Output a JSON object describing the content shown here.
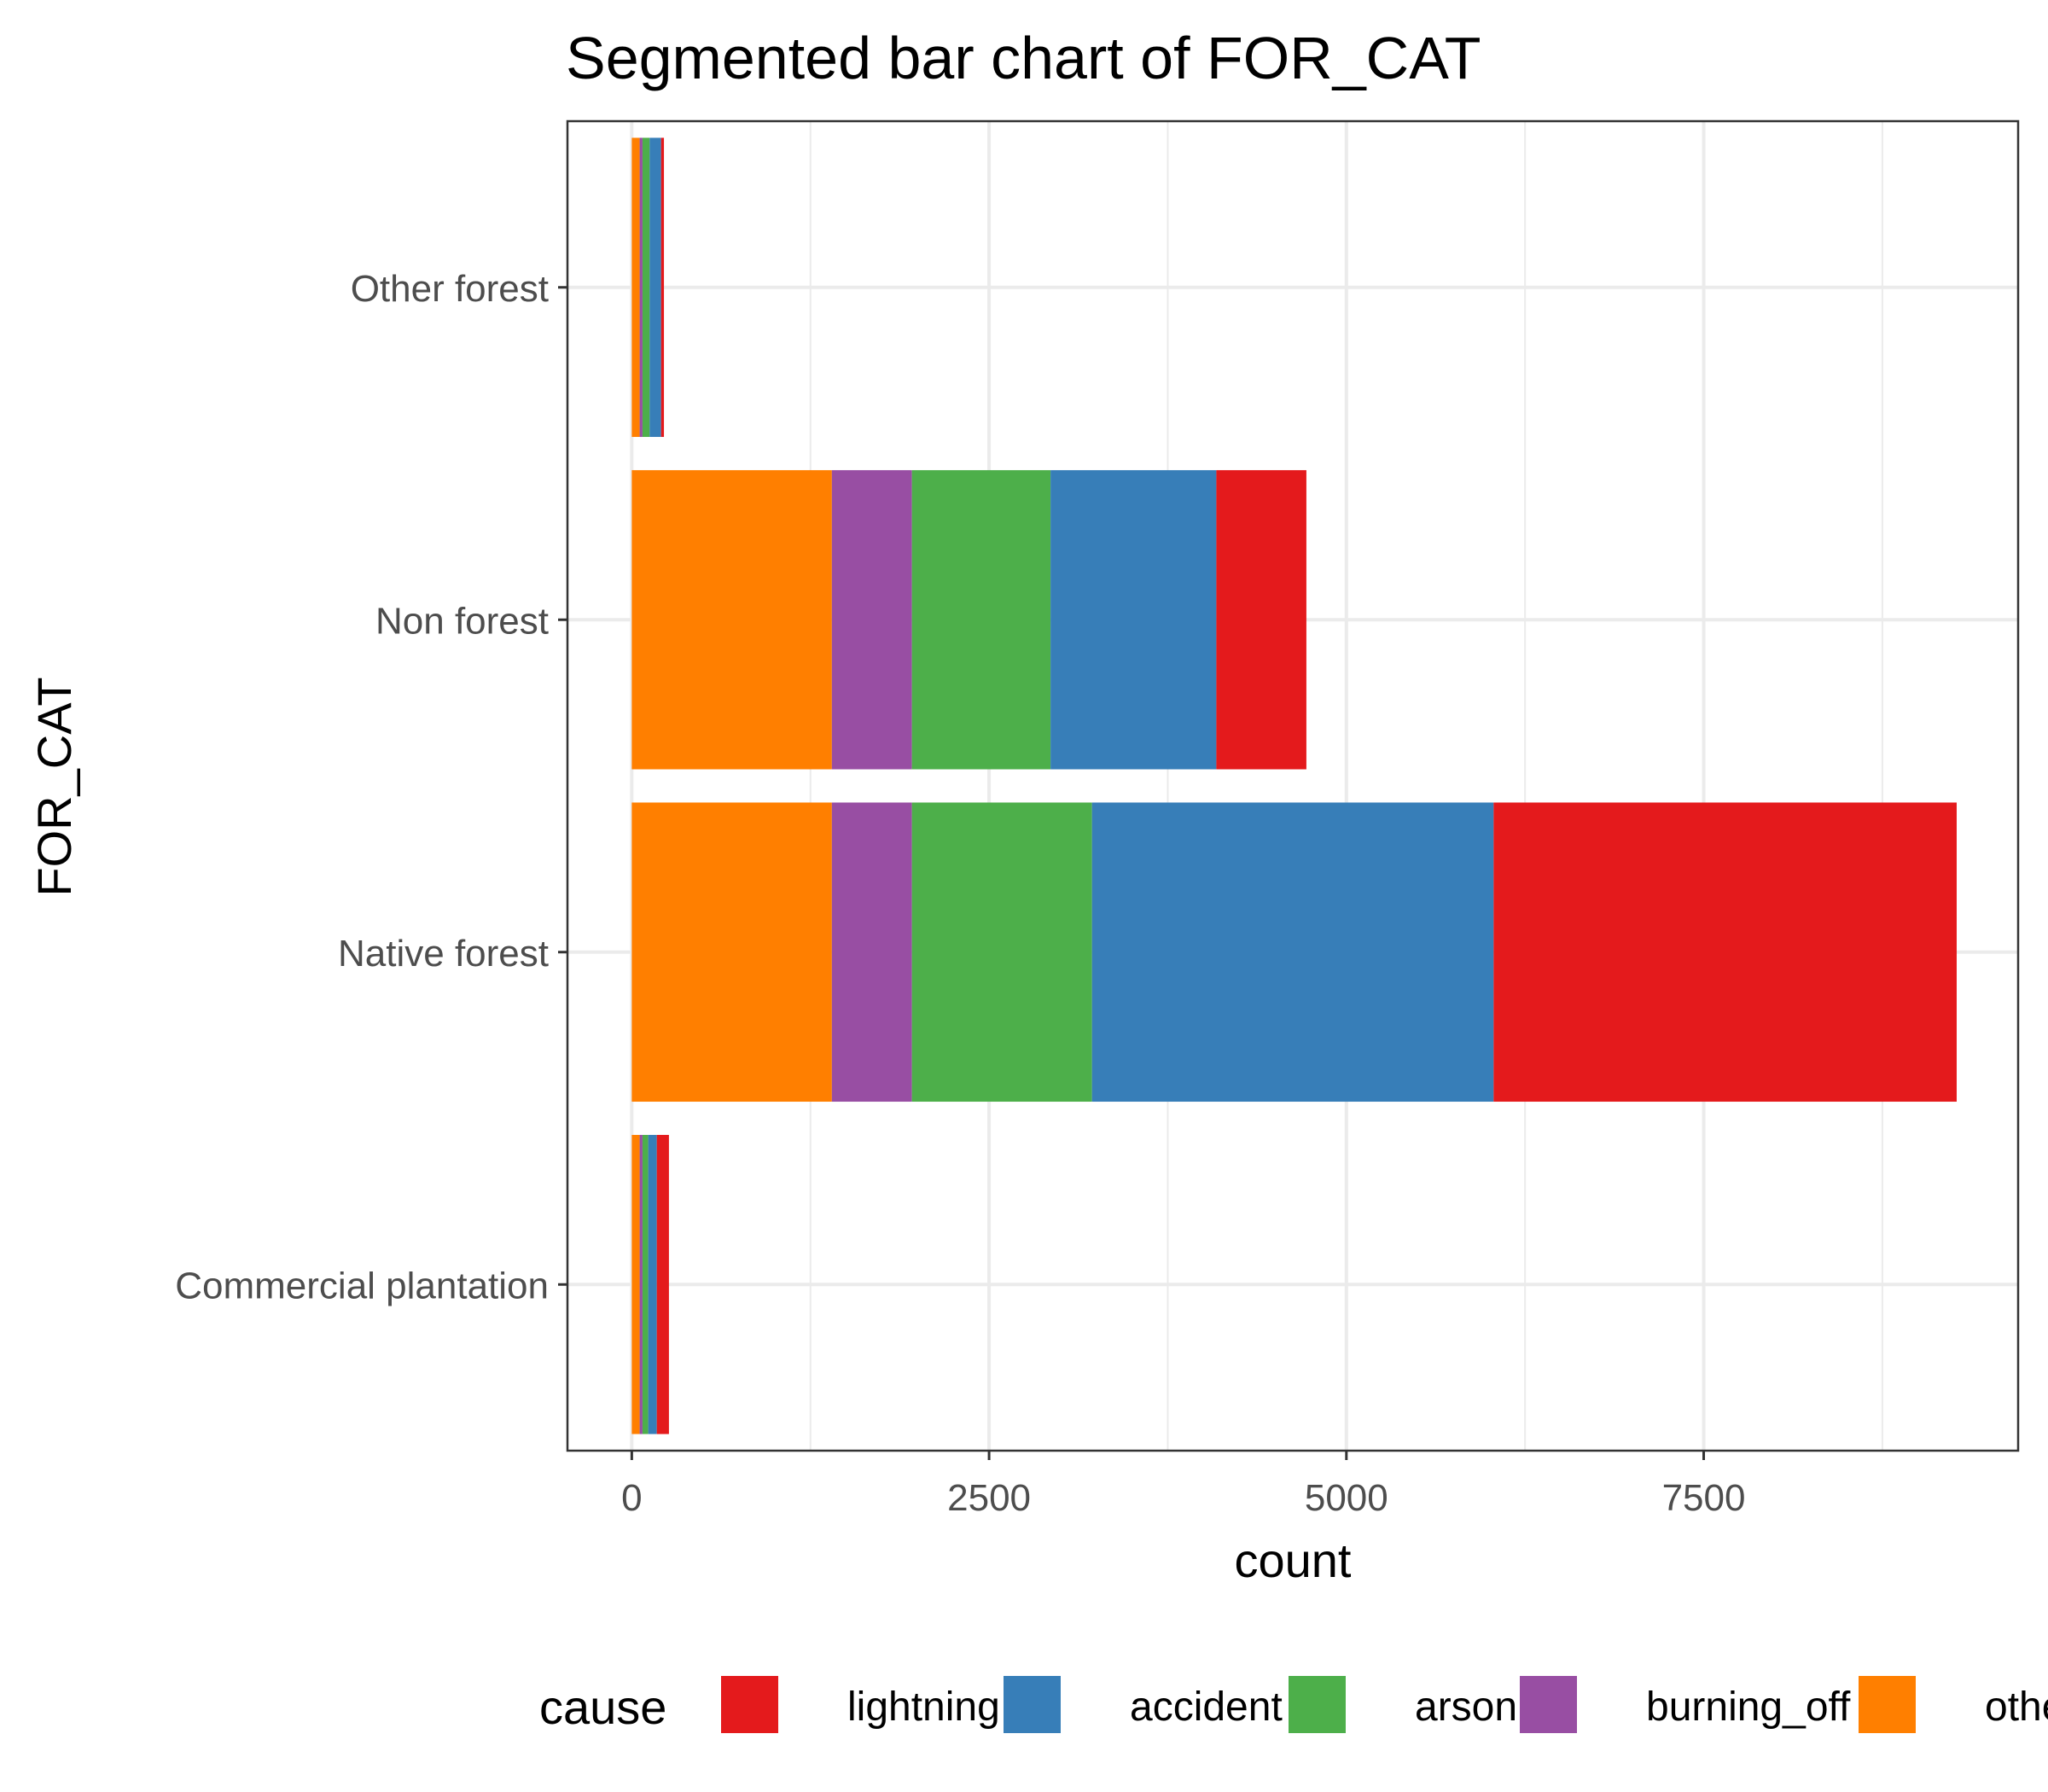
{
  "chart_data": {
    "type": "bar",
    "orientation": "horizontal",
    "stacked": true,
    "title": "Segmented bar chart of FOR_CAT",
    "xlabel": "count",
    "ylabel": "FOR_CAT",
    "xlim": [
      -450,
      9700
    ],
    "xticks": [
      0,
      2500,
      5000,
      7500
    ],
    "xtick_labels": [
      "0",
      "2500",
      "5000",
      "7500"
    ],
    "grid": true,
    "categories": [
      "Commercial plantation",
      "Native forest",
      "Non forest",
      "Other forest"
    ],
    "legend": {
      "title": "cause",
      "position": "bottom"
    },
    "series": [
      {
        "name": "other",
        "color": "#FF7F00",
        "values": [
          55,
          1400,
          1400,
          55
        ]
      },
      {
        "name": "burning_off",
        "color": "#984EA3",
        "values": [
          20,
          560,
          560,
          20
        ]
      },
      {
        "name": "arson",
        "color": "#4DAF4A",
        "values": [
          40,
          1260,
          970,
          50
        ]
      },
      {
        "name": "accident",
        "color": "#377EB8",
        "values": [
          60,
          2810,
          1160,
          80
        ]
      },
      {
        "name": "lightning",
        "color": "#E41A1C",
        "values": [
          85,
          3240,
          630,
          20
        ]
      }
    ],
    "legend_order": [
      "lightning",
      "accident",
      "arson",
      "burning_off",
      "other"
    ]
  }
}
